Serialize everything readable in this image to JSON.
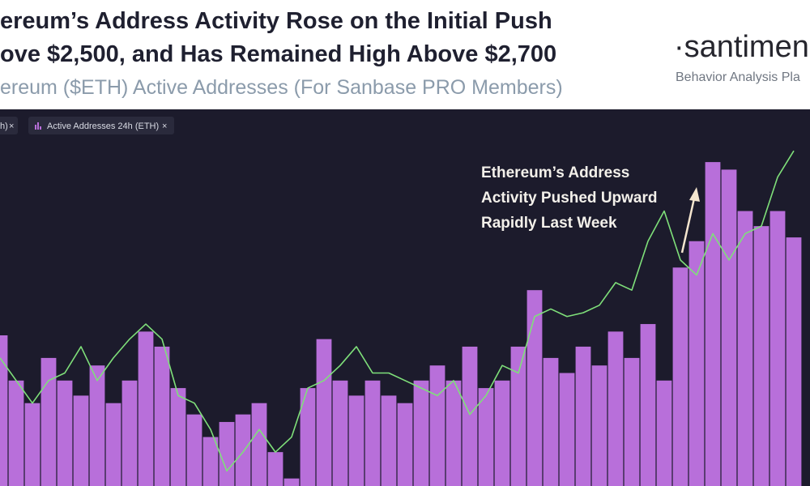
{
  "header": {
    "title_lines": [
      "ereum’s Address Activity Rose on the Initial Push",
      "ove $2,500, and Has Remained High Above $2,700"
    ],
    "subtitle": "ereum ($ETH) Active Addresses (For Sanbase PRO Members)",
    "logo": "·santimen",
    "logo_tagline": "Behavior Analysis Pla"
  },
  "chart_data": {
    "type": "bar",
    "categories": [
      null,
      null,
      null,
      null,
      null,
      null,
      null,
      null,
      null,
      null,
      null,
      null,
      null,
      null,
      null,
      null,
      null,
      null,
      null,
      null,
      null,
      null,
      null,
      null,
      null,
      null,
      null,
      null,
      null,
      null,
      null,
      null,
      null,
      null,
      null,
      null,
      null,
      null,
      null,
      null,
      null,
      null,
      null,
      null,
      null,
      null,
      null,
      null,
      null,
      null
    ],
    "ylim": [
      0,
      100
    ],
    "series": [
      {
        "name": "Active Addresses 24h (ETH)",
        "type": "bar",
        "color": "#b86fda",
        "values": [
          40,
          28,
          22,
          34,
          28,
          24,
          32,
          22,
          28,
          41,
          37,
          26,
          19,
          13,
          17,
          19,
          22,
          9,
          2,
          26,
          39,
          28,
          24,
          28,
          24,
          22,
          28,
          32,
          28,
          37,
          26,
          28,
          37,
          52,
          34,
          30,
          37,
          32,
          41,
          34,
          43,
          28,
          58,
          65,
          86,
          84,
          73,
          69,
          73,
          66
        ]
      },
      {
        "name": "h)",
        "type": "line",
        "color": "#7fe07a",
        "values": [
          34,
          28,
          22,
          28,
          30,
          37,
          28,
          34,
          39,
          43,
          39,
          24,
          22,
          15,
          4,
          9,
          15,
          9,
          13,
          26,
          28,
          32,
          37,
          30,
          30,
          28,
          26,
          24,
          28,
          19,
          24,
          32,
          30,
          45,
          47,
          45,
          46,
          48,
          54,
          52,
          65,
          73,
          60,
          56,
          67,
          60,
          67,
          69,
          82,
          89
        ]
      }
    ],
    "annotation": [
      "Ethereum’s Address",
      "Activity Pushed Upward",
      "Rapidly Last Week"
    ]
  }
}
